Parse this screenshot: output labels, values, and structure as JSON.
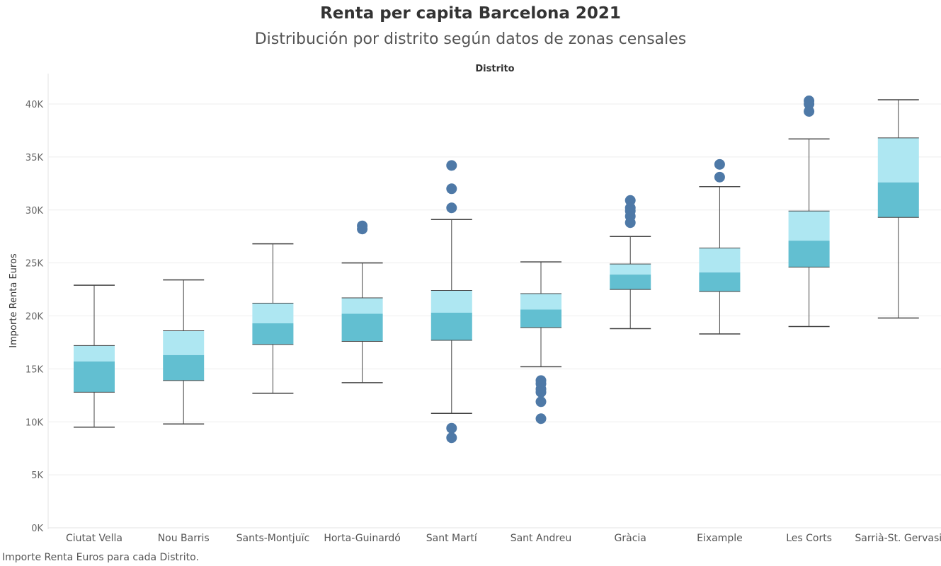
{
  "chart_data": {
    "type": "boxplot",
    "title": "Renta per capita Barcelona 2021",
    "subtitle": "Distribución por distrito según datos de zonas censales",
    "header": "Distrito",
    "ylabel": "Importe Renta Euros",
    "footer": "Importe Renta Euros para cada Distrito.",
    "ylim": [
      0,
      42500
    ],
    "yticks": [
      {
        "value": 0,
        "label": "0K"
      },
      {
        "value": 5000,
        "label": "5K"
      },
      {
        "value": 10000,
        "label": "10K"
      },
      {
        "value": 15000,
        "label": "15K"
      },
      {
        "value": 20000,
        "label": "20K"
      },
      {
        "value": 25000,
        "label": "25K"
      },
      {
        "value": 30000,
        "label": "30K"
      },
      {
        "value": 35000,
        "label": "35K"
      },
      {
        "value": 40000,
        "label": "40K"
      }
    ],
    "grid": true,
    "colors": {
      "upper_box": "#aee7f2",
      "lower_box": "#62bfd1",
      "outlier": "#4e79a7",
      "whisker": "#444444",
      "grid": "#eeeeee"
    },
    "categories": [
      "Ciutat Vella",
      "Nou Barris",
      "Sants-Montjuïc",
      "Horta-Guinardó",
      "Sant Martí",
      "Sant Andreu",
      "Gràcia",
      "Eixample",
      "Les Corts",
      "Sarrià-St. Gervasi"
    ],
    "boxes": [
      {
        "category": "Ciutat Vella",
        "min": 9500,
        "q1": 12800,
        "median": 15700,
        "q3": 17200,
        "max": 22900,
        "outliers": []
      },
      {
        "category": "Nou Barris",
        "min": 9800,
        "q1": 13900,
        "median": 16300,
        "q3": 18600,
        "max": 23400,
        "outliers": []
      },
      {
        "category": "Sants-Montjuïc",
        "min": 12700,
        "q1": 17300,
        "median": 19300,
        "q3": 21200,
        "max": 26800,
        "outliers": []
      },
      {
        "category": "Horta-Guinardó",
        "min": 13700,
        "q1": 17600,
        "median": 20200,
        "q3": 21700,
        "max": 25000,
        "outliers": [
          28500,
          28200
        ]
      },
      {
        "category": "Sant Martí",
        "min": 10800,
        "q1": 17700,
        "median": 20300,
        "q3": 22400,
        "max": 29100,
        "outliers": [
          34200,
          32000,
          30200,
          9400,
          8500
        ]
      },
      {
        "category": "Sant Andreu",
        "min": 15200,
        "q1": 18900,
        "median": 20600,
        "q3": 22100,
        "max": 25100,
        "outliers": [
          13900,
          13600,
          13100,
          12800,
          11900,
          10300
        ]
      },
      {
        "category": "Gràcia",
        "min": 18800,
        "q1": 22500,
        "median": 23900,
        "q3": 24900,
        "max": 27500,
        "outliers": [
          30900,
          30200,
          29900,
          29400,
          28800
        ]
      },
      {
        "category": "Eixample",
        "min": 18300,
        "q1": 22300,
        "median": 24100,
        "q3": 26400,
        "max": 32200,
        "outliers": [
          34300,
          33100
        ]
      },
      {
        "category": "Les Corts",
        "min": 19000,
        "q1": 24600,
        "median": 27100,
        "q3": 29900,
        "max": 36700,
        "outliers": [
          40300,
          40000,
          39300
        ]
      },
      {
        "category": "Sarrià-St. Gervasi",
        "min": 19800,
        "q1": 29300,
        "median": 32600,
        "q3": 36800,
        "max": 40400,
        "outliers": []
      }
    ]
  }
}
